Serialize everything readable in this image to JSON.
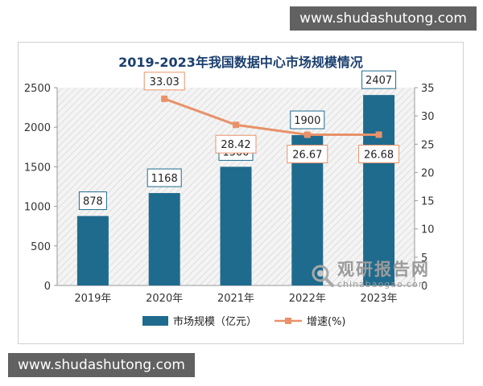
{
  "watermark": {
    "top": "www.shudashutong.com",
    "bottom": "www.shudashutong.com"
  },
  "brand": {
    "name_cn": "观研报告网",
    "name_en": "chinabaogao.com"
  },
  "chart_data": {
    "type": "bar",
    "title": "2019-2023年我国数据中心市场规模情况",
    "categories": [
      "2019年",
      "2020年",
      "2021年",
      "2022年",
      "2023年"
    ],
    "series": [
      {
        "name": "市场规模（亿元）",
        "type": "bar",
        "axis": "left",
        "values": [
          878,
          1168,
          1500,
          1900,
          2407
        ],
        "labels": [
          "878",
          "1168",
          "1500",
          "1900",
          "2407"
        ]
      },
      {
        "name": "增速(%)",
        "type": "line",
        "axis": "right",
        "values": [
          null,
          33.03,
          28.42,
          26.67,
          26.68
        ],
        "labels": [
          "",
          "33.03",
          "28.42",
          "26.67",
          "26.68"
        ]
      }
    ],
    "y_left": {
      "min": 0,
      "max": 2500,
      "ticks": [
        0,
        500,
        1000,
        1500,
        2000,
        2500
      ],
      "tick_labels": [
        "0",
        "500",
        "1000",
        "1500",
        "2000",
        "2500"
      ]
    },
    "y_right": {
      "min": 0,
      "max": 35,
      "ticks": [
        0,
        5,
        10,
        15,
        20,
        25,
        30,
        35
      ],
      "tick_labels": [
        "0",
        "5",
        "10",
        "15",
        "20",
        "25",
        "30",
        "35"
      ]
    },
    "legend_position": "bottom",
    "colors": {
      "bar": "#1f6b8e",
      "line": "#e8926a",
      "title": "#1b3f6e",
      "plot_bg": "#f2f2f2",
      "hatch": "#dcdcdc"
    }
  }
}
